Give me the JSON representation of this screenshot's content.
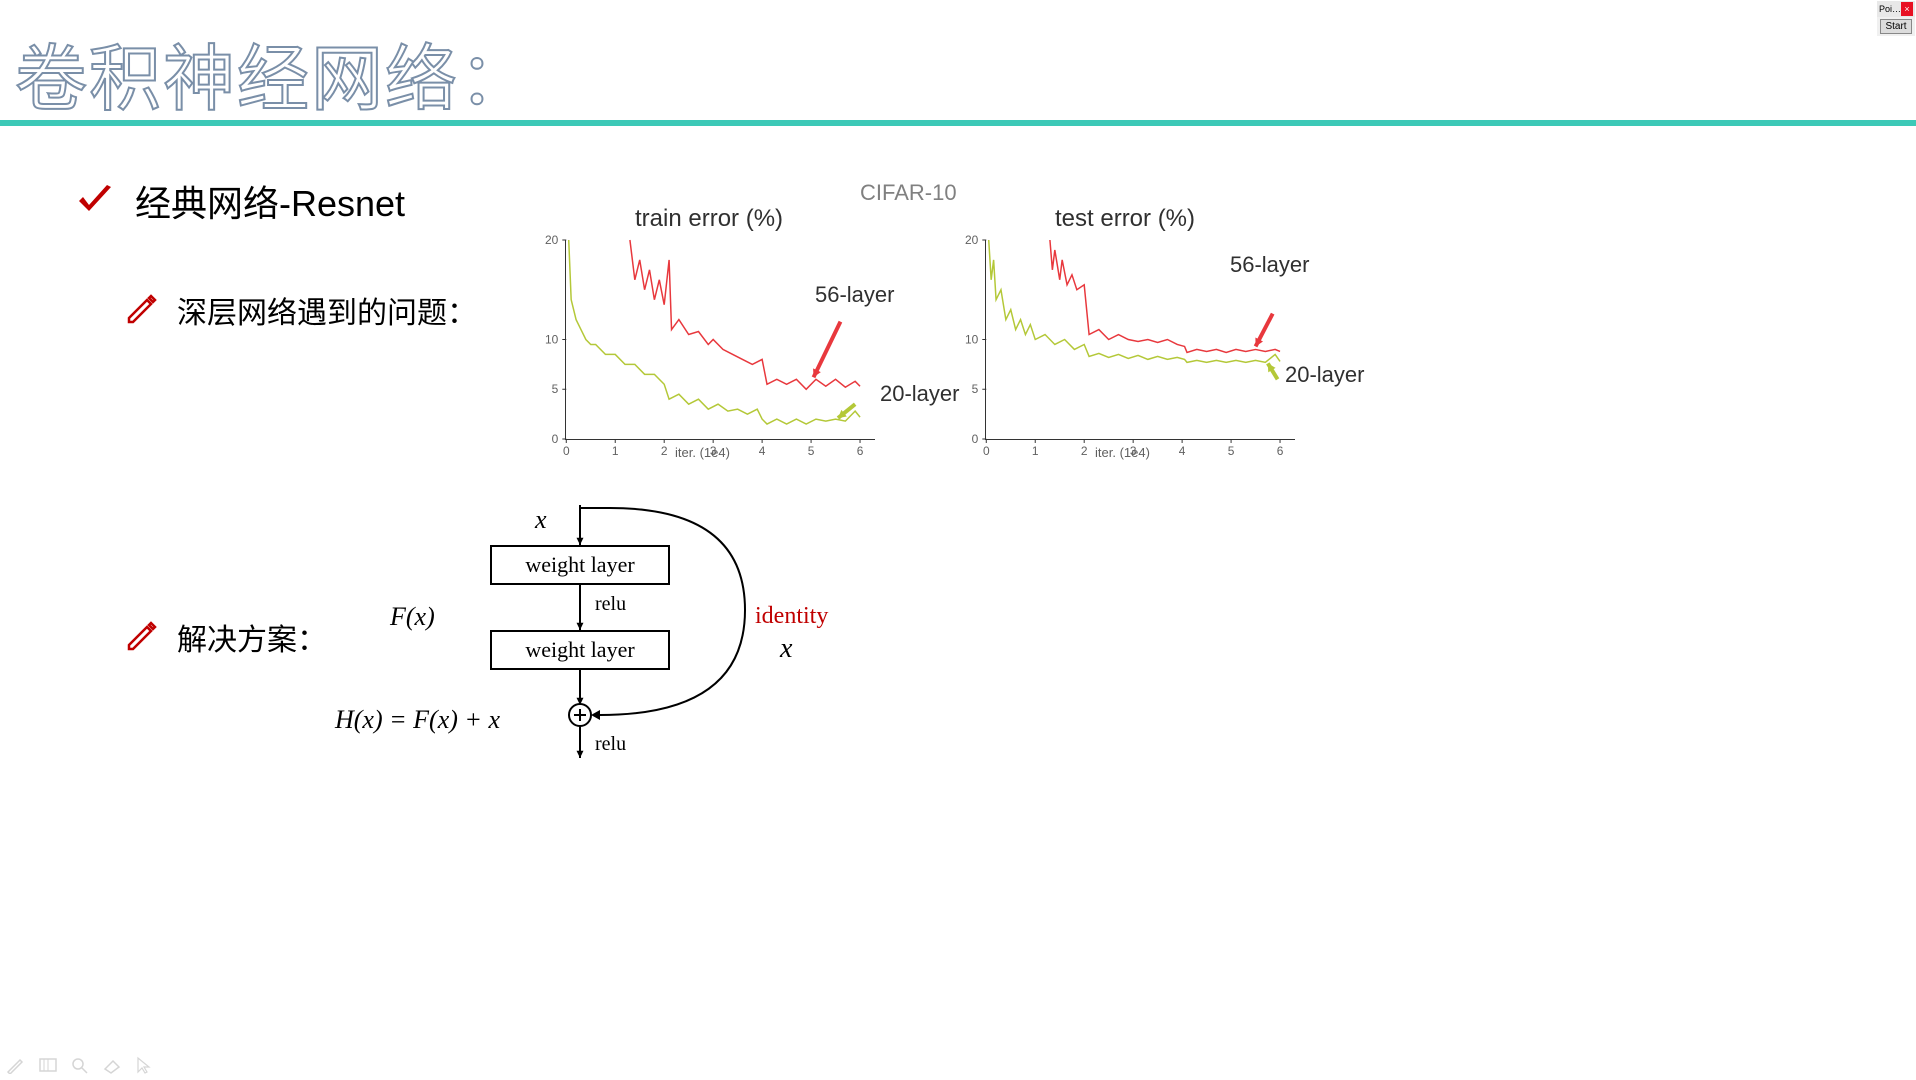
{
  "slide": {
    "title": "卷积神经网络：",
    "title_stroke_color": "#7a8fa8",
    "divider_color": "#3cc9b7",
    "section1": {
      "text": "经典网络-Resnet"
    },
    "section2": {
      "text": "深层网络遇到的问题："
    },
    "section3": {
      "text": "解决方案："
    },
    "accent_red": "#c00000"
  },
  "charts": {
    "super_title": "CIFAR-10",
    "xaxis_label": "iter. (1e4)",
    "xticks": [
      0,
      1,
      2,
      3,
      4,
      5,
      6
    ],
    "yticks": [
      0,
      5,
      10,
      20
    ],
    "ylim": [
      0,
      20
    ],
    "xlim": [
      0,
      6.3
    ],
    "line_width": 1.5,
    "colors": {
      "layer56": "#e8383d",
      "layer20": "#b4c838",
      "axis": "#404040",
      "grid": "#ffffff"
    },
    "label_56": "56-layer",
    "label_20": "20-layer",
    "train": {
      "title": "train error (%)",
      "series56": [
        [
          1.3,
          20
        ],
        [
          1.4,
          16
        ],
        [
          1.5,
          18
        ],
        [
          1.6,
          15
        ],
        [
          1.7,
          17
        ],
        [
          1.8,
          14
        ],
        [
          1.9,
          16
        ],
        [
          2.0,
          13.5
        ],
        [
          2.1,
          18
        ],
        [
          2.15,
          11
        ],
        [
          2.3,
          12
        ],
        [
          2.5,
          10.5
        ],
        [
          2.7,
          10.8
        ],
        [
          2.9,
          9.5
        ],
        [
          3.0,
          10
        ],
        [
          3.2,
          9
        ],
        [
          3.4,
          8.5
        ],
        [
          3.6,
          8
        ],
        [
          3.8,
          7.5
        ],
        [
          4.0,
          8
        ],
        [
          4.1,
          5.5
        ],
        [
          4.3,
          6
        ],
        [
          4.5,
          5.5
        ],
        [
          4.7,
          6
        ],
        [
          4.9,
          5
        ],
        [
          5.1,
          6
        ],
        [
          5.3,
          5.3
        ],
        [
          5.5,
          6
        ],
        [
          5.7,
          5.2
        ],
        [
          5.9,
          5.8
        ],
        [
          6.0,
          5.3
        ]
      ],
      "series20": [
        [
          0.05,
          20
        ],
        [
          0.1,
          14
        ],
        [
          0.2,
          12
        ],
        [
          0.3,
          11
        ],
        [
          0.4,
          10
        ],
        [
          0.5,
          9.5
        ],
        [
          0.6,
          9.5
        ],
        [
          0.8,
          8.5
        ],
        [
          1.0,
          8.5
        ],
        [
          1.2,
          7.5
        ],
        [
          1.4,
          7.5
        ],
        [
          1.6,
          6.5
        ],
        [
          1.8,
          6.5
        ],
        [
          2.0,
          5.5
        ],
        [
          2.1,
          4
        ],
        [
          2.3,
          4.5
        ],
        [
          2.5,
          3.5
        ],
        [
          2.7,
          4
        ],
        [
          2.9,
          3
        ],
        [
          3.1,
          3.5
        ],
        [
          3.3,
          2.8
        ],
        [
          3.5,
          3
        ],
        [
          3.7,
          2.5
        ],
        [
          3.9,
          3
        ],
        [
          4.0,
          2
        ],
        [
          4.1,
          1.5
        ],
        [
          4.3,
          2
        ],
        [
          4.5,
          1.5
        ],
        [
          4.7,
          2
        ],
        [
          4.9,
          1.5
        ],
        [
          5.1,
          2
        ],
        [
          5.3,
          1.8
        ],
        [
          5.5,
          2
        ],
        [
          5.7,
          1.8
        ],
        [
          5.9,
          2.8
        ],
        [
          6.0,
          2.2
        ]
      ],
      "arrow56": {
        "from": [
          5.6,
          11.8
        ],
        "to": [
          5.05,
          6.2
        ],
        "color": "#e8383d"
      },
      "arrow20": {
        "from": [
          5.9,
          3.5
        ],
        "to": [
          5.55,
          2.1
        ],
        "color": "#b4c838"
      }
    },
    "test": {
      "title": "test error (%)",
      "series56": [
        [
          1.3,
          20
        ],
        [
          1.35,
          17
        ],
        [
          1.4,
          19
        ],
        [
          1.5,
          16
        ],
        [
          1.55,
          18
        ],
        [
          1.65,
          15.5
        ],
        [
          1.75,
          16.5
        ],
        [
          1.85,
          15
        ],
        [
          2.0,
          15.5
        ],
        [
          2.1,
          10.5
        ],
        [
          2.3,
          11
        ],
        [
          2.5,
          10
        ],
        [
          2.7,
          10.5
        ],
        [
          2.9,
          10
        ],
        [
          3.1,
          9.8
        ],
        [
          3.3,
          10
        ],
        [
          3.5,
          9.7
        ],
        [
          3.7,
          10
        ],
        [
          3.9,
          9.5
        ],
        [
          4.05,
          9.3
        ],
        [
          4.1,
          8.7
        ],
        [
          4.3,
          9
        ],
        [
          4.5,
          8.8
        ],
        [
          4.7,
          9
        ],
        [
          4.9,
          8.7
        ],
        [
          5.1,
          9
        ],
        [
          5.3,
          8.8
        ],
        [
          5.5,
          9
        ],
        [
          5.7,
          8.8
        ],
        [
          5.9,
          9
        ],
        [
          6.0,
          8.8
        ]
      ],
      "series20": [
        [
          0.05,
          20
        ],
        [
          0.1,
          16
        ],
        [
          0.15,
          18
        ],
        [
          0.2,
          14
        ],
        [
          0.3,
          15
        ],
        [
          0.4,
          12
        ],
        [
          0.5,
          13
        ],
        [
          0.6,
          11
        ],
        [
          0.7,
          12
        ],
        [
          0.8,
          10.5
        ],
        [
          0.9,
          11.5
        ],
        [
          1.0,
          10
        ],
        [
          1.2,
          10.5
        ],
        [
          1.4,
          9.5
        ],
        [
          1.6,
          10
        ],
        [
          1.8,
          9
        ],
        [
          2.0,
          9.5
        ],
        [
          2.1,
          8.3
        ],
        [
          2.3,
          8.6
        ],
        [
          2.5,
          8.2
        ],
        [
          2.7,
          8.5
        ],
        [
          2.9,
          8.1
        ],
        [
          3.1,
          8.4
        ],
        [
          3.3,
          8
        ],
        [
          3.5,
          8.3
        ],
        [
          3.7,
          8
        ],
        [
          3.9,
          8.2
        ],
        [
          4.05,
          8
        ],
        [
          4.1,
          7.7
        ],
        [
          4.3,
          7.9
        ],
        [
          4.5,
          7.7
        ],
        [
          4.7,
          7.9
        ],
        [
          4.9,
          7.7
        ],
        [
          5.1,
          7.9
        ],
        [
          5.3,
          7.7
        ],
        [
          5.5,
          7.9
        ],
        [
          5.7,
          7.7
        ],
        [
          5.9,
          8.5
        ],
        [
          6.0,
          7.8
        ]
      ],
      "arrow56": {
        "from": [
          5.85,
          12.6
        ],
        "to": [
          5.5,
          9.3
        ],
        "color": "#e8383d"
      },
      "arrow20": {
        "from": [
          5.95,
          6.0
        ],
        "to": [
          5.75,
          7.6
        ],
        "color": "#b4c838"
      }
    }
  },
  "resblock": {
    "x_label": "x",
    "fx_label": "F(x)",
    "hx_label": "H(x) = F(x) + x",
    "weight_layer": "weight layer",
    "relu": "relu",
    "identity": "identity",
    "identity_x": "x",
    "line_color": "#000000",
    "line_width": 2
  },
  "overlay": {
    "title": "Poi…",
    "button": "Start"
  }
}
